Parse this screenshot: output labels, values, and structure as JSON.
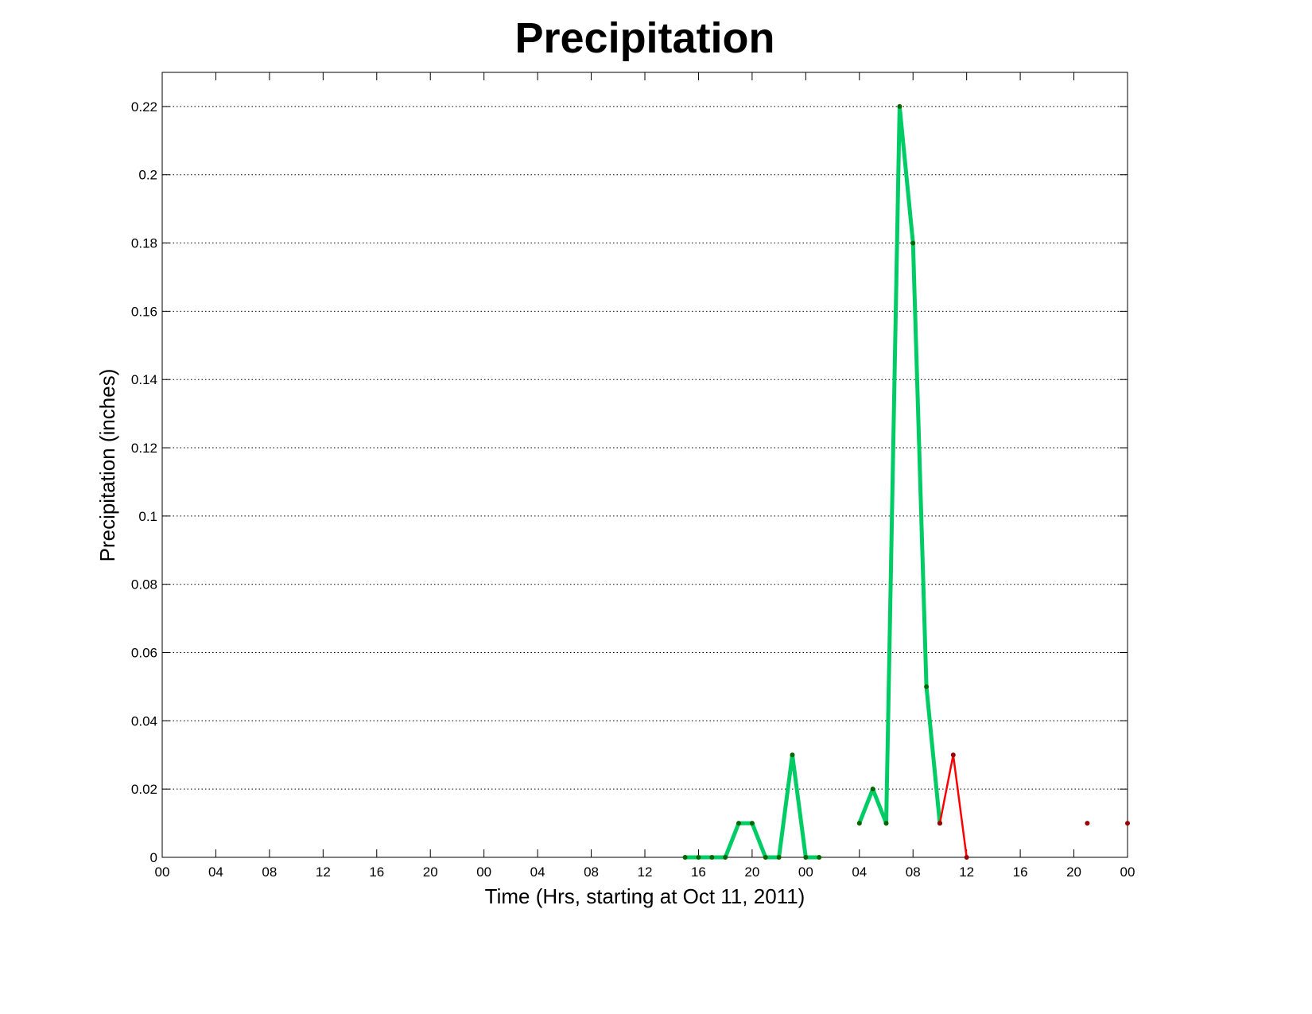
{
  "chart_data": {
    "type": "line",
    "title": "Precipitation",
    "x_label": "Time (Hrs, starting at Oct 11, 2011)",
    "y_label": "Precipitation (inches)",
    "xlim": [
      0,
      72
    ],
    "xticks": [
      {
        "value": 0,
        "label": "00"
      },
      {
        "value": 4,
        "label": "04"
      },
      {
        "value": 8,
        "label": "08"
      },
      {
        "value": 12,
        "label": "12"
      },
      {
        "value": 16,
        "label": "16"
      },
      {
        "value": 20,
        "label": "20"
      },
      {
        "value": 24,
        "label": "00"
      },
      {
        "value": 28,
        "label": "04"
      },
      {
        "value": 32,
        "label": "08"
      },
      {
        "value": 36,
        "label": "12"
      },
      {
        "value": 40,
        "label": "16"
      },
      {
        "value": 44,
        "label": "20"
      },
      {
        "value": 48,
        "label": "00"
      },
      {
        "value": 52,
        "label": "04"
      },
      {
        "value": 56,
        "label": "08"
      },
      {
        "value": 60,
        "label": "12"
      },
      {
        "value": 64,
        "label": "16"
      },
      {
        "value": 68,
        "label": "20"
      },
      {
        "value": 72,
        "label": "00"
      }
    ],
    "ylim": [
      0,
      0.23
    ],
    "yticks": [
      0,
      0.02,
      0.04,
      0.06,
      0.08,
      0.1,
      0.12,
      0.14,
      0.16,
      0.18,
      0.2,
      0.22
    ],
    "grid": true,
    "series": [
      {
        "color": "#00cc66",
        "marker_color": "#006600",
        "line_width": 5,
        "x": [
          39,
          40,
          41,
          42,
          43,
          44,
          45,
          46,
          47,
          48,
          49,
          50,
          51,
          52,
          53,
          54,
          55,
          56,
          57,
          58
        ],
        "values": [
          0,
          0,
          0,
          0,
          0.01,
          0.01,
          0,
          0,
          0.03,
          0,
          0,
          null,
          null,
          0.01,
          0.02,
          0.01,
          0.22,
          0.18,
          0.05,
          0.01
        ]
      },
      {
        "color": "#ff0000",
        "marker_color": "#990000",
        "line_width": 2.5,
        "x": [
          58,
          59,
          60,
          61,
          69,
          70,
          72
        ],
        "values": [
          0.01,
          0.03,
          0,
          null,
          0.01,
          null,
          0.01
        ]
      }
    ]
  }
}
